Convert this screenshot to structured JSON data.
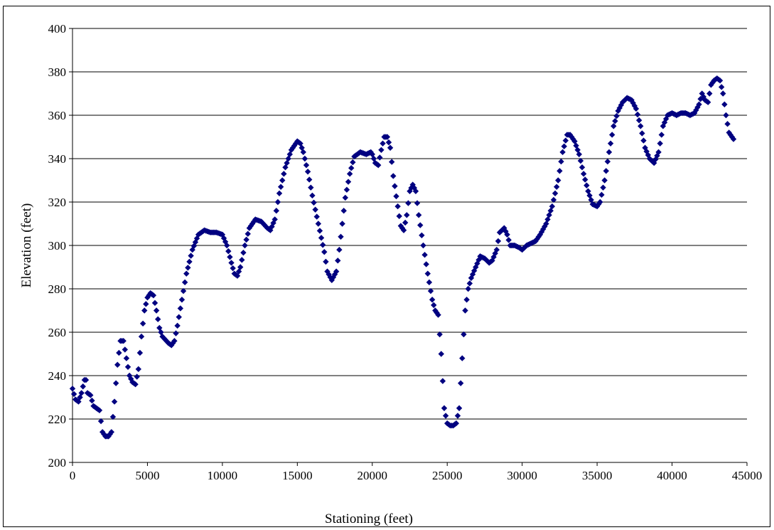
{
  "chart_data": {
    "type": "scatter",
    "title": "",
    "xlabel": "Stationing (feet)",
    "ylabel": "Elevation (feet)",
    "xlim": [
      0,
      45000
    ],
    "ylim": [
      200,
      400
    ],
    "x_ticks": [
      "0",
      "5000",
      "10000",
      "15000",
      "20000",
      "25000",
      "30000",
      "35000",
      "40000",
      "45000"
    ],
    "y_ticks": [
      "200",
      "220",
      "240",
      "260",
      "280",
      "300",
      "320",
      "340",
      "360",
      "380",
      "400"
    ],
    "grid": "horizontal major gridlines",
    "legend": "none",
    "marker": "diamond",
    "series_color": "#000080",
    "series": [
      {
        "points": [
          [
            0,
            234
          ],
          [
            200,
            229
          ],
          [
            400,
            228
          ],
          [
            600,
            232
          ],
          [
            800,
            238
          ],
          [
            900,
            238
          ],
          [
            1000,
            232
          ],
          [
            1200,
            231
          ],
          [
            1400,
            226
          ],
          [
            1600,
            225
          ],
          [
            1800,
            224
          ],
          [
            2000,
            214
          ],
          [
            2200,
            212
          ],
          [
            2400,
            212
          ],
          [
            2600,
            214
          ],
          [
            2800,
            228
          ],
          [
            3000,
            245
          ],
          [
            3200,
            256
          ],
          [
            3400,
            256
          ],
          [
            3600,
            248
          ],
          [
            3800,
            240
          ],
          [
            4000,
            237
          ],
          [
            4200,
            236
          ],
          [
            4400,
            243
          ],
          [
            4600,
            258
          ],
          [
            4800,
            270
          ],
          [
            5000,
            276
          ],
          [
            5200,
            278
          ],
          [
            5400,
            277
          ],
          [
            5600,
            270
          ],
          [
            5800,
            262
          ],
          [
            6000,
            258
          ],
          [
            6400,
            255
          ],
          [
            6600,
            254
          ],
          [
            6800,
            256
          ],
          [
            7000,
            263
          ],
          [
            7300,
            275
          ],
          [
            7600,
            287
          ],
          [
            8000,
            298
          ],
          [
            8400,
            305
          ],
          [
            8800,
            307
          ],
          [
            9200,
            306
          ],
          [
            9600,
            306
          ],
          [
            10000,
            305
          ],
          [
            10300,
            300
          ],
          [
            10600,
            292
          ],
          [
            10800,
            287
          ],
          [
            11000,
            286
          ],
          [
            11200,
            290
          ],
          [
            11500,
            300
          ],
          [
            11800,
            308
          ],
          [
            12200,
            312
          ],
          [
            12600,
            311
          ],
          [
            13000,
            308
          ],
          [
            13200,
            307
          ],
          [
            13500,
            312
          ],
          [
            13800,
            324
          ],
          [
            14200,
            336
          ],
          [
            14600,
            344
          ],
          [
            15000,
            348
          ],
          [
            15200,
            347
          ],
          [
            15400,
            343
          ],
          [
            15700,
            334
          ],
          [
            16000,
            323
          ],
          [
            16400,
            310
          ],
          [
            16800,
            297
          ],
          [
            17000,
            288
          ],
          [
            17300,
            284
          ],
          [
            17600,
            288
          ],
          [
            17800,
            298
          ],
          [
            18000,
            310
          ],
          [
            18200,
            322
          ],
          [
            18500,
            333
          ],
          [
            18800,
            341
          ],
          [
            19200,
            343
          ],
          [
            19600,
            342
          ],
          [
            19900,
            343
          ],
          [
            20000,
            342
          ],
          [
            20200,
            338
          ],
          [
            20400,
            337
          ],
          [
            20600,
            344
          ],
          [
            20800,
            350
          ],
          [
            21000,
            350
          ],
          [
            21200,
            345
          ],
          [
            21400,
            332
          ],
          [
            21700,
            318
          ],
          [
            21900,
            309
          ],
          [
            22100,
            307
          ],
          [
            22300,
            314
          ],
          [
            22500,
            325
          ],
          [
            22700,
            328
          ],
          [
            22900,
            325
          ],
          [
            23100,
            314
          ],
          [
            23400,
            300
          ],
          [
            23700,
            287
          ],
          [
            24000,
            275
          ],
          [
            24200,
            270
          ],
          [
            24400,
            268
          ],
          [
            24600,
            250
          ],
          [
            24800,
            225
          ],
          [
            25000,
            218
          ],
          [
            25200,
            217
          ],
          [
            25400,
            217
          ],
          [
            25600,
            218
          ],
          [
            25800,
            225
          ],
          [
            26000,
            248
          ],
          [
            26200,
            270
          ],
          [
            26400,
            280
          ],
          [
            26600,
            285
          ],
          [
            26900,
            290
          ],
          [
            27200,
            295
          ],
          [
            27500,
            294
          ],
          [
            27800,
            292
          ],
          [
            28000,
            293
          ],
          [
            28300,
            298
          ],
          [
            28500,
            306
          ],
          [
            28800,
            308
          ],
          [
            29000,
            305
          ],
          [
            29200,
            300
          ],
          [
            29500,
            300
          ],
          [
            29800,
            299
          ],
          [
            30000,
            298
          ],
          [
            30300,
            300
          ],
          [
            30600,
            301
          ],
          [
            30900,
            302
          ],
          [
            31200,
            305
          ],
          [
            31600,
            310
          ],
          [
            32000,
            318
          ],
          [
            32400,
            330
          ],
          [
            32700,
            343
          ],
          [
            33000,
            351
          ],
          [
            33200,
            351
          ],
          [
            33500,
            348
          ],
          [
            33800,
            342
          ],
          [
            34100,
            333
          ],
          [
            34400,
            325
          ],
          [
            34700,
            319
          ],
          [
            35000,
            318
          ],
          [
            35200,
            320
          ],
          [
            35500,
            330
          ],
          [
            35800,
            343
          ],
          [
            36100,
            355
          ],
          [
            36400,
            362
          ],
          [
            36700,
            366
          ],
          [
            37000,
            368
          ],
          [
            37300,
            367
          ],
          [
            37600,
            363
          ],
          [
            37900,
            355
          ],
          [
            38200,
            345
          ],
          [
            38500,
            340
          ],
          [
            38800,
            338
          ],
          [
            39100,
            343
          ],
          [
            39400,
            355
          ],
          [
            39700,
            360
          ],
          [
            40000,
            361
          ],
          [
            40300,
            360
          ],
          [
            40600,
            361
          ],
          [
            40900,
            361
          ],
          [
            41200,
            360
          ],
          [
            41500,
            361
          ],
          [
            41800,
            365
          ],
          [
            42000,
            370
          ],
          [
            42200,
            367
          ],
          [
            42400,
            366
          ],
          [
            42600,
            374
          ],
          [
            42800,
            376
          ],
          [
            43000,
            377
          ],
          [
            43200,
            376
          ],
          [
            43400,
            370
          ],
          [
            43600,
            360
          ],
          [
            43800,
            352
          ],
          [
            44000,
            350
          ],
          [
            44100,
            349
          ]
        ]
      }
    ]
  }
}
